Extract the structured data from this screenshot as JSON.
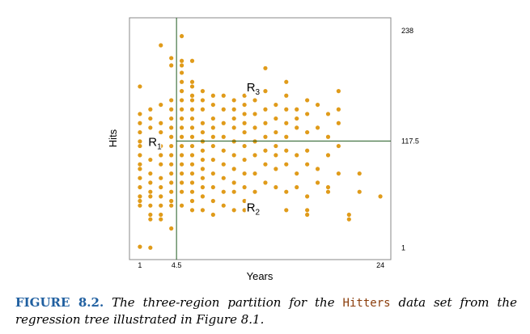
{
  "figure": {
    "label": "FIGURE 8.2.",
    "caption_parts": {
      "before": "The three-region partition for the",
      "dataset": "Hitters",
      "after": "data set from the regression tree illustrated in Figure 8.1."
    }
  },
  "colors": {
    "points": "#e09b1a",
    "split_lines": "#1f5a1f",
    "axes": "#888888",
    "caption_label": "#1f5fa0",
    "code": "#8b3d0b"
  },
  "chart_data": {
    "type": "scatter",
    "xlabel": "Years",
    "ylabel": "Hits",
    "xlim": [
      0,
      25
    ],
    "ylim": [
      -12,
      252
    ],
    "x_ticks": [
      1,
      4.5,
      24
    ],
    "x_tick_labels": [
      "1",
      "4.5",
      "24"
    ],
    "y_ticks": [
      1,
      117.5,
      238
    ],
    "y_tick_labels": [
      "1",
      "117.5",
      "238"
    ],
    "splits": {
      "vertical_x": 4.5,
      "horizontal_y": 117.5
    },
    "regions": [
      {
        "name": "R",
        "sub": "1",
        "x": 1.8,
        "y": 117.5
      },
      {
        "name": "R",
        "sub": "2",
        "x": 11.2,
        "y": 46
      },
      {
        "name": "R",
        "sub": "3",
        "x": 11.2,
        "y": 177
      }
    ],
    "points": [
      [
        1,
        2
      ],
      [
        2,
        1
      ],
      [
        1,
        177
      ],
      [
        1,
        147
      ],
      [
        1,
        137
      ],
      [
        1,
        127
      ],
      [
        1,
        117
      ],
      [
        1,
        112
      ],
      [
        1,
        102
      ],
      [
        1,
        92
      ],
      [
        1,
        87
      ],
      [
        1,
        77
      ],
      [
        1,
        67
      ],
      [
        1,
        57
      ],
      [
        1,
        52
      ],
      [
        1,
        47
      ],
      [
        2,
        152
      ],
      [
        2,
        142
      ],
      [
        2,
        132
      ],
      [
        2,
        122
      ],
      [
        2,
        112
      ],
      [
        2,
        97
      ],
      [
        2,
        82
      ],
      [
        2,
        72
      ],
      [
        2,
        62
      ],
      [
        2,
        57
      ],
      [
        2,
        47
      ],
      [
        2,
        37
      ],
      [
        2,
        32
      ],
      [
        3,
        222
      ],
      [
        3,
        157
      ],
      [
        3,
        137
      ],
      [
        3,
        127
      ],
      [
        3,
        112
      ],
      [
        3,
        102
      ],
      [
        3,
        92
      ],
      [
        3,
        77
      ],
      [
        3,
        67
      ],
      [
        3,
        57
      ],
      [
        3,
        47
      ],
      [
        3,
        37
      ],
      [
        3,
        32
      ],
      [
        4,
        208
      ],
      [
        4,
        200
      ],
      [
        4,
        162
      ],
      [
        4,
        152
      ],
      [
        4,
        142
      ],
      [
        4,
        132
      ],
      [
        4,
        122
      ],
      [
        4,
        112
      ],
      [
        4,
        102
      ],
      [
        4,
        92
      ],
      [
        4,
        82
      ],
      [
        4,
        72
      ],
      [
        4,
        62
      ],
      [
        4,
        52
      ],
      [
        4,
        47
      ],
      [
        4,
        22
      ],
      [
        5,
        232
      ],
      [
        5,
        205
      ],
      [
        5,
        200
      ],
      [
        5,
        192
      ],
      [
        5,
        182
      ],
      [
        5,
        172
      ],
      [
        5,
        162
      ],
      [
        5,
        152
      ],
      [
        5,
        142
      ],
      [
        5,
        132
      ],
      [
        5,
        122
      ],
      [
        5,
        112
      ],
      [
        5,
        102
      ],
      [
        5,
        92
      ],
      [
        5,
        82
      ],
      [
        5,
        72
      ],
      [
        5,
        62
      ],
      [
        5,
        47
      ],
      [
        6,
        205
      ],
      [
        6,
        182
      ],
      [
        6,
        177
      ],
      [
        6,
        167
      ],
      [
        6,
        162
      ],
      [
        6,
        152
      ],
      [
        6,
        142
      ],
      [
        6,
        132
      ],
      [
        6,
        122
      ],
      [
        6,
        112
      ],
      [
        6,
        102
      ],
      [
        6,
        92
      ],
      [
        6,
        82
      ],
      [
        6,
        72
      ],
      [
        6,
        62
      ],
      [
        6,
        52
      ],
      [
        6,
        42
      ],
      [
        7,
        172
      ],
      [
        7,
        162
      ],
      [
        7,
        152
      ],
      [
        7,
        137
      ],
      [
        7,
        127
      ],
      [
        7,
        117
      ],
      [
        7,
        107
      ],
      [
        7,
        97
      ],
      [
        7,
        87
      ],
      [
        7,
        77
      ],
      [
        7,
        67
      ],
      [
        7,
        57
      ],
      [
        7,
        42
      ],
      [
        8,
        167
      ],
      [
        8,
        157
      ],
      [
        8,
        142
      ],
      [
        8,
        132
      ],
      [
        8,
        122
      ],
      [
        8,
        112
      ],
      [
        8,
        97
      ],
      [
        8,
        82
      ],
      [
        8,
        67
      ],
      [
        8,
        52
      ],
      [
        8,
        37
      ],
      [
        9,
        167
      ],
      [
        9,
        152
      ],
      [
        9,
        137
      ],
      [
        9,
        122
      ],
      [
        9,
        107
      ],
      [
        9,
        92
      ],
      [
        9,
        77
      ],
      [
        9,
        62
      ],
      [
        9,
        47
      ],
      [
        10,
        162
      ],
      [
        10,
        152
      ],
      [
        10,
        142
      ],
      [
        10,
        132
      ],
      [
        10,
        117
      ],
      [
        10,
        102
      ],
      [
        10,
        87
      ],
      [
        10,
        72
      ],
      [
        10,
        62
      ],
      [
        10,
        42
      ],
      [
        11,
        167
      ],
      [
        11,
        157
      ],
      [
        11,
        147
      ],
      [
        11,
        137
      ],
      [
        11,
        127
      ],
      [
        11,
        112
      ],
      [
        11,
        97
      ],
      [
        11,
        82
      ],
      [
        11,
        67
      ],
      [
        11,
        52
      ],
      [
        11,
        42
      ],
      [
        12,
        162
      ],
      [
        12,
        147
      ],
      [
        12,
        132
      ],
      [
        12,
        117
      ],
      [
        12,
        102
      ],
      [
        12,
        82
      ],
      [
        12,
        62
      ],
      [
        12,
        47
      ],
      [
        13,
        197
      ],
      [
        13,
        172
      ],
      [
        13,
        152
      ],
      [
        13,
        137
      ],
      [
        13,
        122
      ],
      [
        13,
        107
      ],
      [
        13,
        92
      ],
      [
        13,
        72
      ],
      [
        14,
        157
      ],
      [
        14,
        142
      ],
      [
        14,
        127
      ],
      [
        14,
        112
      ],
      [
        14,
        102
      ],
      [
        14,
        87
      ],
      [
        14,
        67
      ],
      [
        15,
        182
      ],
      [
        15,
        167
      ],
      [
        15,
        152
      ],
      [
        15,
        137
      ],
      [
        15,
        122
      ],
      [
        15,
        107
      ],
      [
        15,
        92
      ],
      [
        15,
        62
      ],
      [
        15,
        42
      ],
      [
        16,
        152
      ],
      [
        16,
        142
      ],
      [
        16,
        132
      ],
      [
        16,
        102
      ],
      [
        16,
        82
      ],
      [
        16,
        67
      ],
      [
        17,
        162
      ],
      [
        17,
        147
      ],
      [
        17,
        127
      ],
      [
        17,
        107
      ],
      [
        17,
        92
      ],
      [
        17,
        57
      ],
      [
        17,
        42
      ],
      [
        17,
        37
      ],
      [
        18,
        157
      ],
      [
        18,
        132
      ],
      [
        18,
        87
      ],
      [
        18,
        72
      ],
      [
        19,
        147
      ],
      [
        19,
        122
      ],
      [
        19,
        102
      ],
      [
        19,
        67
      ],
      [
        19,
        62
      ],
      [
        20,
        172
      ],
      [
        20,
        152
      ],
      [
        20,
        137
      ],
      [
        20,
        112
      ],
      [
        20,
        82
      ],
      [
        21,
        37
      ],
      [
        21,
        32
      ],
      [
        22,
        82
      ],
      [
        22,
        62
      ],
      [
        24,
        57
      ]
    ]
  }
}
